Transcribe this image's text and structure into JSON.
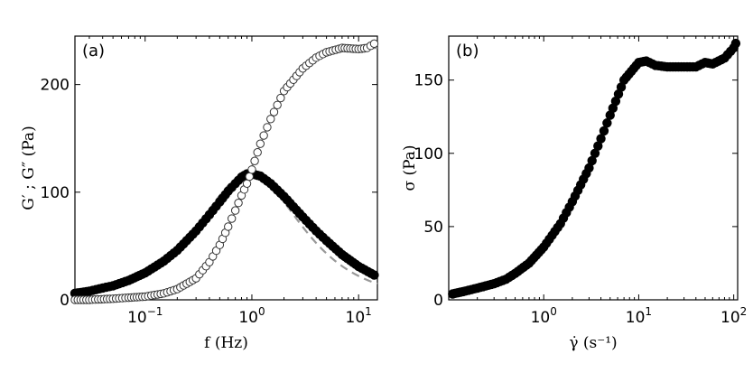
{
  "chart_data": [
    {
      "type": "scatter",
      "panel_label": "(a)",
      "xlabel": "f (Hz)",
      "ylabel": "G′ ; G″ (Pa)",
      "x_scale": "log",
      "xlim": [
        0.022,
        15
      ],
      "ylim": [
        0,
        245
      ],
      "x_ticks": [
        {
          "value": 0.1,
          "base": "10",
          "exp": "−1"
        },
        {
          "value": 1,
          "base": "10",
          "exp": "0"
        },
        {
          "value": 10,
          "base": "10",
          "exp": "1"
        }
      ],
      "y_ticks": [
        {
          "value": 0,
          "label": "0"
        },
        {
          "value": 100,
          "label": "100"
        },
        {
          "value": 200,
          "label": "200"
        }
      ],
      "maxwell_fit": {
        "G0": 235,
        "f_crossover": 0.95
      },
      "series": [
        {
          "marker": "filled-circle",
          "x": [
            0.022,
            0.03,
            0.04,
            0.05,
            0.07,
            0.1,
            0.15,
            0.2,
            0.3,
            0.4,
            0.5,
            0.6,
            0.7,
            0.8,
            0.9,
            1.0,
            1.2,
            1.5,
            2,
            3,
            4,
            5,
            7,
            10,
            14
          ],
          "y": [
            6,
            8,
            11,
            13,
            18,
            25,
            36,
            46,
            64,
            79,
            91,
            101,
            108,
            114,
            117,
            117,
            115,
            108,
            96,
            77,
            64,
            55,
            42,
            31,
            23
          ]
        },
        {
          "marker": "open-circle",
          "x": [
            0.022,
            0.03,
            0.05,
            0.07,
            0.1,
            0.15,
            0.2,
            0.3,
            0.4,
            0.5,
            0.6,
            0.7,
            0.8,
            0.9,
            1.0,
            1.2,
            1.5,
            2,
            3,
            4,
            5,
            7,
            10,
            12,
            14
          ],
          "y": [
            0,
            0,
            1,
            2,
            3,
            6,
            10,
            20,
            35,
            51,
            68,
            83,
            97,
            108,
            121,
            145,
            168,
            194,
            215,
            225,
            230,
            234,
            233,
            234,
            238
          ]
        }
      ]
    },
    {
      "type": "scatter",
      "panel_label": "(b)",
      "xlabel": "γ̇ (s⁻¹)",
      "ylabel": "σ (Pa)",
      "x_scale": "log",
      "xlim": [
        0.1,
        110
      ],
      "ylim": [
        0,
        180
      ],
      "x_ticks": [
        {
          "value": 1,
          "base": "10",
          "exp": "0"
        },
        {
          "value": 10,
          "base": "10",
          "exp": "1"
        },
        {
          "value": 100,
          "base": "10",
          "exp": "2"
        }
      ],
      "y_ticks": [
        {
          "value": 0,
          "label": "0"
        },
        {
          "value": 50,
          "label": "50"
        },
        {
          "value": 100,
          "label": "100"
        },
        {
          "value": 150,
          "label": "150"
        }
      ],
      "series": [
        {
          "marker": "filled-circle",
          "x": [
            0.11,
            0.15,
            0.2,
            0.3,
            0.4,
            0.5,
            0.7,
            1,
            1.5,
            2,
            3,
            4,
            5,
            7,
            10,
            12,
            15,
            20,
            30,
            40,
            50,
            60,
            80,
            100,
            105
          ],
          "y": [
            4,
            6,
            8,
            11,
            14,
            18,
            25,
            36,
            52,
            67,
            90,
            110,
            126,
            150,
            162,
            163,
            160,
            159,
            159,
            159,
            162,
            161,
            165,
            172,
            175
          ]
        }
      ]
    }
  ]
}
